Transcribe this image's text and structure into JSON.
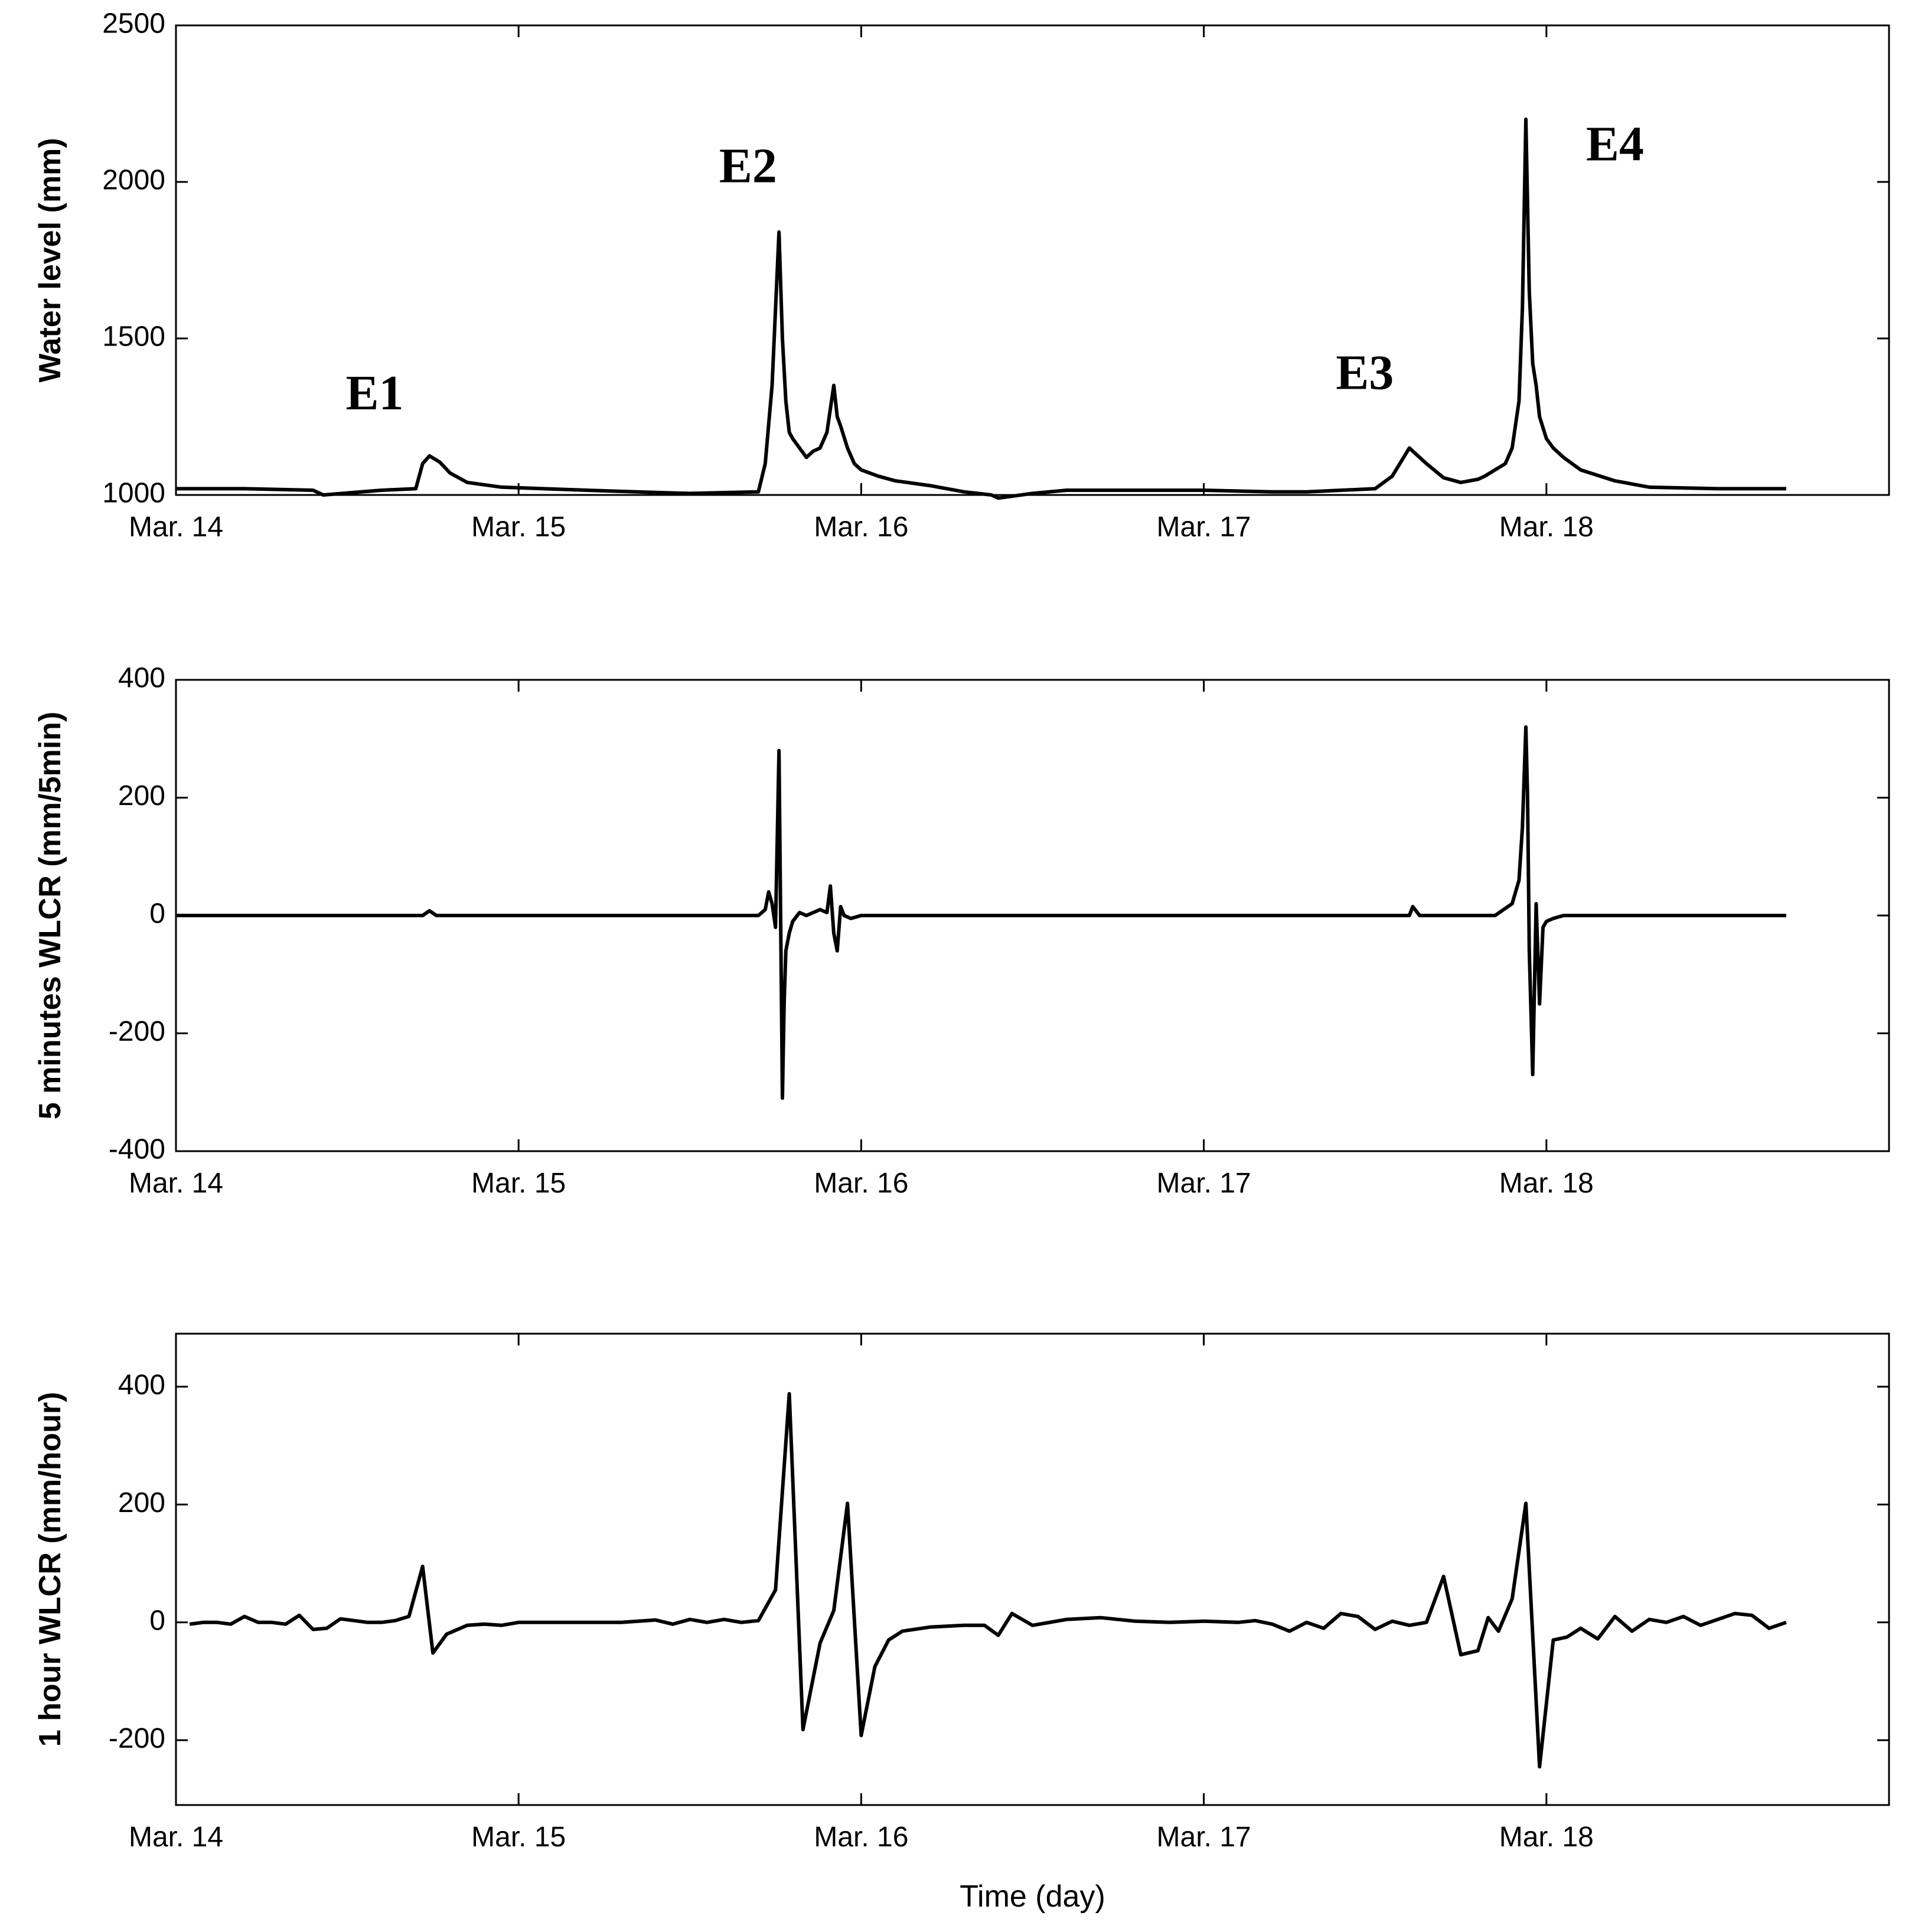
{
  "figure": {
    "xlabel": "Time (day)"
  },
  "chart_data": [
    {
      "type": "line",
      "ylabel": "Water level (mm)",
      "ylim": [
        1000,
        2500
      ],
      "yticks": [
        1000,
        1500,
        2000,
        2500
      ],
      "xlim": [
        0,
        5
      ],
      "xticks": [
        0,
        1,
        2,
        3,
        4
      ],
      "xticklabels": [
        "Mar. 14",
        "Mar. 15",
        "Mar. 16",
        "Mar. 17",
        "Mar. 18"
      ],
      "x_unit": "days since Mar. 14 00:00",
      "annotations": [
        {
          "text": "E1",
          "x": 0.58,
          "y": 1310
        },
        {
          "text": "E2",
          "x": 1.67,
          "y": 2035
        },
        {
          "text": "E3",
          "x": 3.47,
          "y": 1375
        },
        {
          "text": "E4",
          "x": 4.2,
          "y": 2105
        }
      ],
      "series": [
        {
          "x": [
            0,
            0.2,
            0.4,
            0.43,
            0.6,
            0.7,
            0.72,
            0.74,
            0.77,
            0.8,
            0.85,
            0.95,
            1.2,
            1.4,
            1.5,
            1.7,
            1.72,
            1.74,
            1.76,
            1.77,
            1.78,
            1.79,
            1.8,
            1.82,
            1.84,
            1.86,
            1.88,
            1.9,
            1.92,
            1.93,
            1.94,
            1.96,
            1.98,
            2.0,
            2.05,
            2.1,
            2.2,
            2.3,
            2.38,
            2.4,
            2.5,
            2.6,
            2.8,
            3.0,
            3.2,
            3.3,
            3.5,
            3.55,
            3.6,
            3.62,
            3.65,
            3.7,
            3.75,
            3.8,
            3.82,
            3.85,
            3.88,
            3.9,
            3.92,
            3.93,
            3.94,
            3.95,
            3.96,
            3.97,
            3.98,
            4.0,
            4.02,
            4.05,
            4.1,
            4.2,
            4.3,
            4.5,
            4.7
          ],
          "y": [
            1020,
            1020,
            1015,
            1000,
            1015,
            1020,
            1100,
            1125,
            1105,
            1070,
            1040,
            1025,
            1015,
            1008,
            1005,
            1010,
            1100,
            1350,
            1840,
            1500,
            1300,
            1200,
            1180,
            1150,
            1120,
            1140,
            1150,
            1200,
            1350,
            1250,
            1220,
            1150,
            1100,
            1080,
            1060,
            1045,
            1030,
            1010,
            1000,
            990,
            1005,
            1015,
            1015,
            1015,
            1010,
            1010,
            1020,
            1060,
            1150,
            1130,
            1100,
            1055,
            1040,
            1050,
            1060,
            1080,
            1100,
            1150,
            1300,
            1600,
            2200,
            1650,
            1420,
            1350,
            1250,
            1180,
            1150,
            1120,
            1080,
            1045,
            1025,
            1020,
            1020
          ]
        }
      ]
    },
    {
      "type": "line",
      "ylabel": "5 minutes WLCR (mm/5min)",
      "ylim": [
        -400,
        400
      ],
      "yticks": [
        -400,
        -200,
        0,
        200,
        400
      ],
      "xlim": [
        0,
        5
      ],
      "xticks": [
        0,
        1,
        2,
        3,
        4
      ],
      "xticklabels": [
        "Mar. 14",
        "Mar. 15",
        "Mar. 16",
        "Mar. 17",
        "Mar. 18"
      ],
      "series": [
        {
          "x": [
            0,
            0.4,
            0.72,
            0.74,
            0.76,
            1.7,
            1.72,
            1.73,
            1.74,
            1.75,
            1.76,
            1.77,
            1.775,
            1.78,
            1.79,
            1.8,
            1.82,
            1.84,
            1.86,
            1.88,
            1.9,
            1.91,
            1.92,
            1.93,
            1.94,
            1.95,
            1.97,
            2.0,
            2.05,
            3.6,
            3.61,
            3.63,
            3.85,
            3.9,
            3.92,
            3.93,
            3.94,
            3.945,
            3.95,
            3.96,
            3.97,
            3.98,
            3.99,
            4.0,
            4.02,
            4.05,
            4.1,
            4.2,
            4.7
          ],
          "y": [
            0,
            0,
            0,
            8,
            0,
            0,
            10,
            40,
            20,
            -20,
            280,
            -310,
            -150,
            -60,
            -30,
            -10,
            5,
            0,
            5,
            10,
            5,
            50,
            -30,
            -60,
            15,
            0,
            -5,
            0,
            0,
            0,
            15,
            0,
            0,
            20,
            60,
            150,
            320,
            200,
            -60,
            -270,
            20,
            -150,
            -20,
            -10,
            -5,
            0,
            0,
            0,
            0
          ]
        }
      ]
    },
    {
      "type": "line",
      "ylabel": "1 hour WLCR (mm/hour)",
      "ylim": [
        -310,
        490
      ],
      "yticks": [
        -200,
        0,
        200,
        400
      ],
      "xlim": [
        0,
        5
      ],
      "xticks": [
        0,
        1,
        2,
        3,
        4
      ],
      "xticklabels": [
        "Mar. 14",
        "Mar. 15",
        "Mar. 16",
        "Mar. 17",
        "Mar. 18"
      ],
      "series": [
        {
          "x": [
            0.04,
            0.08,
            0.12,
            0.16,
            0.2,
            0.24,
            0.28,
            0.32,
            0.36,
            0.4,
            0.44,
            0.48,
            0.52,
            0.56,
            0.6,
            0.64,
            0.68,
            0.72,
            0.75,
            0.79,
            0.85,
            0.9,
            0.95,
            1.0,
            1.1,
            1.2,
            1.3,
            1.4,
            1.45,
            1.5,
            1.55,
            1.6,
            1.65,
            1.7,
            1.75,
            1.79,
            1.83,
            1.88,
            1.92,
            1.96,
            2.0,
            2.04,
            2.08,
            2.12,
            2.2,
            2.3,
            2.36,
            2.4,
            2.44,
            2.5,
            2.6,
            2.7,
            2.8,
            2.9,
            3.0,
            3.1,
            3.15,
            3.2,
            3.25,
            3.3,
            3.35,
            3.4,
            3.45,
            3.5,
            3.55,
            3.6,
            3.65,
            3.7,
            3.75,
            3.8,
            3.83,
            3.86,
            3.9,
            3.94,
            3.98,
            4.02,
            4.06,
            4.1,
            4.15,
            4.2,
            4.25,
            4.3,
            4.35,
            4.4,
            4.45,
            4.5,
            4.55,
            4.6,
            4.65,
            4.7
          ],
          "y": [
            -3,
            0,
            0,
            -3,
            10,
            0,
            0,
            -3,
            12,
            -12,
            -10,
            6,
            3,
            0,
            0,
            3,
            10,
            95,
            -52,
            -20,
            -5,
            -3,
            -5,
            0,
            0,
            0,
            0,
            4,
            -3,
            5,
            0,
            5,
            0,
            3,
            55,
            388,
            -182,
            -35,
            20,
            202,
            -192,
            -75,
            -30,
            -15,
            -8,
            -5,
            -5,
            -22,
            15,
            -5,
            5,
            8,
            2,
            0,
            2,
            0,
            3,
            -3,
            -15,
            0,
            -10,
            15,
            10,
            -12,
            2,
            -5,
            0,
            78,
            -55,
            -48,
            8,
            -15,
            40,
            202,
            -245,
            -30,
            -25,
            -10,
            -28,
            10,
            -15,
            5,
            0,
            10,
            -5,
            5,
            15,
            12,
            -10,
            0
          ]
        }
      ]
    }
  ]
}
